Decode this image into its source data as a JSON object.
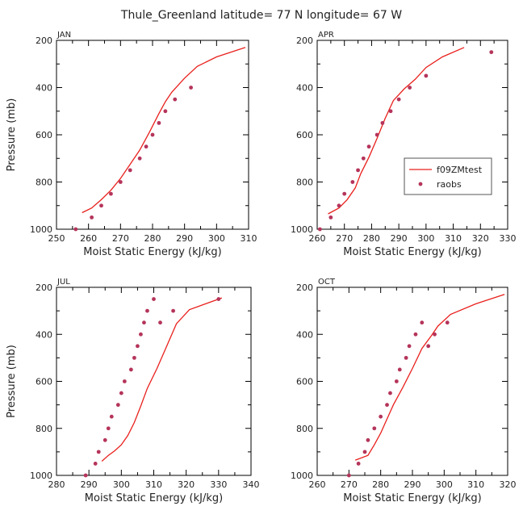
{
  "figure": {
    "title": "Thule_Greenland   latitude= 77 N longitude= 67 W"
  },
  "colors": {
    "model_line": "#e8201c",
    "obs_marker": "#b5345a",
    "axis": "#000000"
  },
  "legend": {
    "entries": [
      "f09ZMtest",
      "raobs"
    ],
    "panel": "APR",
    "placement": "right-middle"
  },
  "chart_data": [
    {
      "type": "line",
      "panel": "JAN",
      "xlabel": "Moist Static Energy (kJ/kg)",
      "ylabel": "Pressure (mb)",
      "xlim": [
        250,
        310
      ],
      "ylim": [
        1000,
        200
      ],
      "xticks": [
        250,
        260,
        270,
        280,
        290,
        300,
        310
      ],
      "yticks": [
        200,
        400,
        600,
        800,
        1000
      ],
      "series": [
        {
          "name": "f09ZMtest",
          "style": "line",
          "x": [
            258,
            261,
            264,
            267,
            270,
            273,
            276,
            279,
            282,
            284,
            286,
            290,
            294,
            300,
            309
          ],
          "y": [
            930,
            910,
            875,
            835,
            785,
            725,
            665,
            590,
            510,
            460,
            420,
            360,
            310,
            270,
            230
          ]
        },
        {
          "name": "raobs",
          "style": "markers",
          "x": [
            256,
            261,
            264,
            267,
            270,
            273,
            276,
            278,
            280,
            282,
            284,
            287,
            292
          ],
          "y": [
            1000,
            950,
            900,
            850,
            800,
            750,
            700,
            650,
            600,
            550,
            500,
            450,
            400
          ]
        }
      ]
    },
    {
      "type": "line",
      "panel": "APR",
      "xlabel": "Moist Static Energy (kJ/kg)",
      "ylabel": "",
      "xlim": [
        260,
        330
      ],
      "ylim": [
        1000,
        200
      ],
      "xticks": [
        260,
        270,
        280,
        290,
        300,
        310,
        320,
        330
      ],
      "yticks": [
        200,
        400,
        600,
        800,
        1000
      ],
      "series": [
        {
          "name": "f09ZMtest",
          "style": "line",
          "x": [
            264,
            268,
            271,
            274,
            276,
            279,
            282,
            285,
            288,
            292,
            296,
            300,
            306,
            314
          ],
          "y": [
            935,
            910,
            875,
            825,
            765,
            695,
            615,
            530,
            455,
            405,
            365,
            315,
            270,
            230
          ]
        },
        {
          "name": "raobs",
          "style": "markers",
          "x": [
            261,
            265,
            268,
            270,
            273,
            275,
            277,
            279,
            282,
            284,
            287,
            290,
            294,
            300,
            324
          ],
          "y": [
            1000,
            950,
            900,
            850,
            800,
            750,
            700,
            650,
            600,
            550,
            500,
            450,
            400,
            350,
            250
          ]
        }
      ]
    },
    {
      "type": "line",
      "panel": "JUL",
      "xlabel": "Moist Static Energy (kJ/kg)",
      "ylabel": "Pressure (mb)",
      "xlim": [
        280,
        340
      ],
      "ylim": [
        1000,
        200
      ],
      "xticks": [
        280,
        290,
        300,
        310,
        320,
        330,
        340
      ],
      "yticks": [
        200,
        400,
        600,
        800,
        1000
      ],
      "series": [
        {
          "name": "f09ZMtest",
          "style": "line",
          "x": [
            294,
            296,
            298,
            300,
            302,
            304,
            306,
            308,
            311,
            314,
            317,
            321,
            326,
            331
          ],
          "y": [
            940,
            915,
            895,
            870,
            830,
            775,
            705,
            630,
            545,
            450,
            355,
            295,
            270,
            245
          ]
        },
        {
          "name": "raobs",
          "style": "markers",
          "x": [
            289,
            292,
            293,
            295,
            296,
            297,
            299,
            300,
            301,
            303,
            304,
            305,
            306,
            307,
            308,
            310,
            312,
            316,
            330
          ],
          "y": [
            1000,
            950,
            900,
            850,
            800,
            750,
            700,
            650,
            600,
            550,
            500,
            450,
            400,
            350,
            300,
            250,
            350,
            300,
            250
          ]
        }
      ]
    },
    {
      "type": "line",
      "panel": "OCT",
      "xlabel": "Moist Static Energy (kJ/kg)",
      "ylabel": "",
      "xlim": [
        260,
        320
      ],
      "ylim": [
        1000,
        200
      ],
      "xticks": [
        260,
        270,
        280,
        290,
        300,
        310,
        320
      ],
      "yticks": [
        200,
        400,
        600,
        800,
        1000
      ],
      "series": [
        {
          "name": "f09ZMtest",
          "style": "line",
          "x": [
            272,
            276,
            278,
            280,
            282,
            284,
            287,
            290,
            293,
            296,
            298,
            302,
            310,
            319
          ],
          "y": [
            935,
            915,
            870,
            820,
            760,
            700,
            625,
            545,
            460,
            405,
            365,
            315,
            270,
            230
          ]
        },
        {
          "name": "raobs",
          "style": "markers",
          "x": [
            270,
            273,
            275,
            276,
            278,
            280,
            282,
            283,
            285,
            286,
            288,
            289,
            291,
            293,
            295,
            297,
            301
          ],
          "y": [
            1000,
            950,
            900,
            850,
            800,
            750,
            700,
            650,
            600,
            550,
            500,
            450,
            400,
            350,
            450,
            400,
            350
          ]
        }
      ]
    }
  ]
}
